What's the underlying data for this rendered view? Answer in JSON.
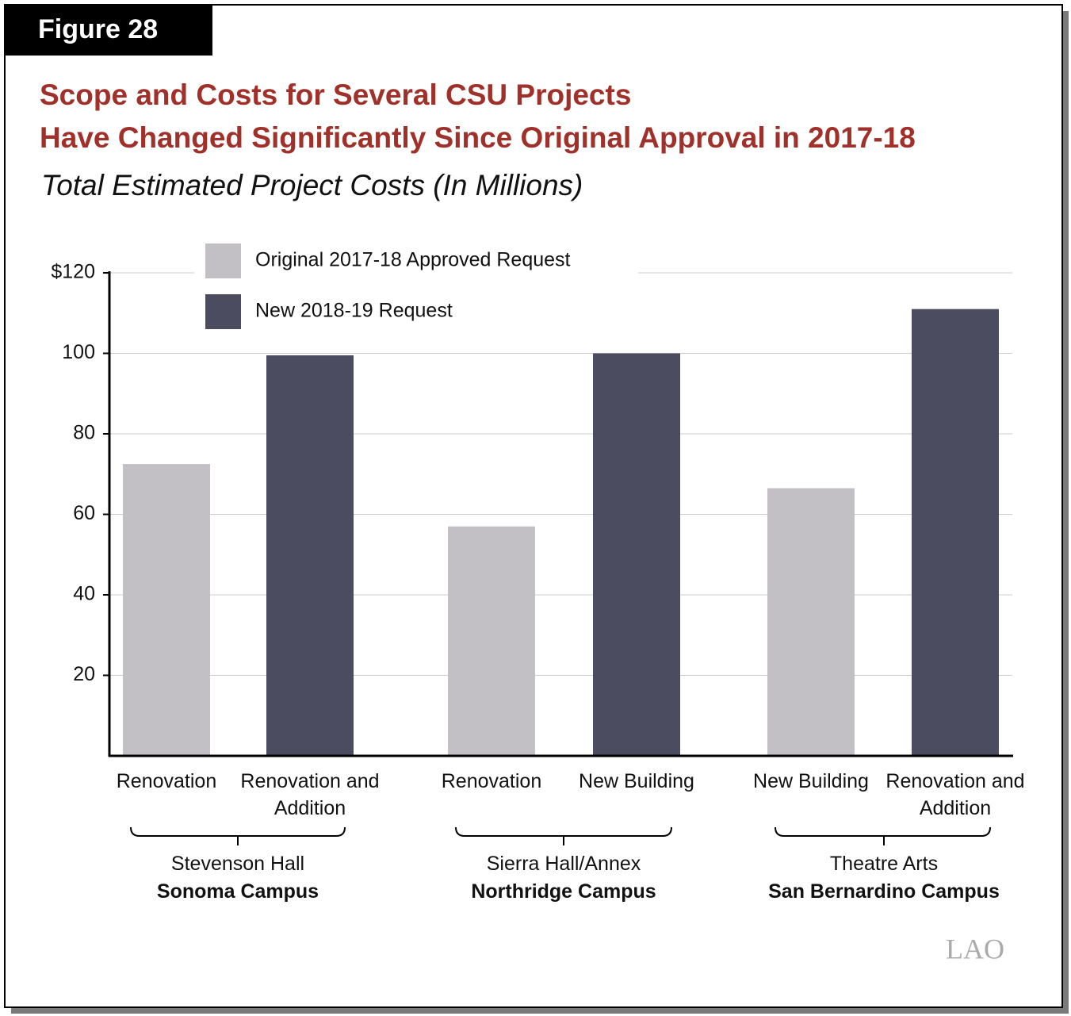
{
  "figure_label": "Figure 28",
  "logo": "LAO",
  "chart_data": {
    "type": "bar",
    "title": [
      "Scope and Costs for Several CSU Projects",
      "Have Changed Significantly Since Original Approval in 2017-18"
    ],
    "subtitle": "Total Estimated Project Costs (In Millions)",
    "categories": [
      "Renovation",
      "Renovation and Addition",
      "Renovation",
      "New Building",
      "New Building",
      "Renovation and Addition"
    ],
    "groups": [
      {
        "name": "Stevenson Hall",
        "campus": "Sonoma Campus"
      },
      {
        "name": "Sierra Hall/Annex",
        "campus": "Northridge Campus"
      },
      {
        "name": "Theatre Arts",
        "campus": "San Bernardino Campus"
      }
    ],
    "series": [
      {
        "name": "Original 2017-18 Approved Request",
        "color": "#c2bfc5",
        "values": [
          72.5,
          null,
          57,
          null,
          66.5,
          null
        ]
      },
      {
        "name": "New 2018-19 Request",
        "color": "#4b4c60",
        "values": [
          null,
          99.5,
          null,
          100,
          null,
          111
        ]
      }
    ],
    "ylim": [
      0,
      120
    ],
    "yticks": [
      20,
      40,
      60,
      80,
      100,
      {
        "value": 120,
        "label": "$120"
      }
    ],
    "grid": true,
    "legend": "top-left"
  }
}
